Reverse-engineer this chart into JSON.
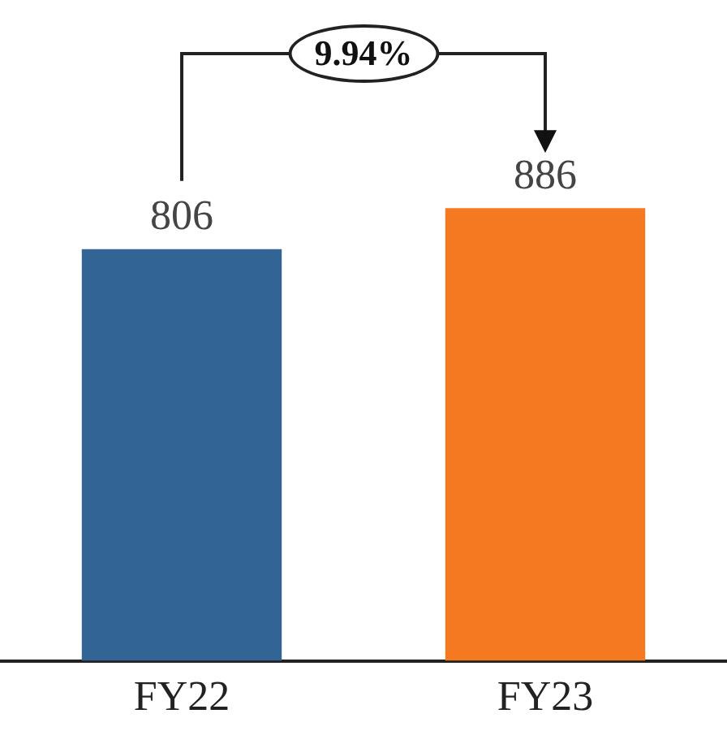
{
  "chart_data": {
    "type": "bar",
    "categories": [
      "FY22",
      "FY23"
    ],
    "values": [
      806,
      886
    ],
    "colors": [
      "#326496",
      "#f47920"
    ],
    "data_labels": true,
    "annotations": [
      "9.94%"
    ],
    "grid": false,
    "legend": false
  }
}
